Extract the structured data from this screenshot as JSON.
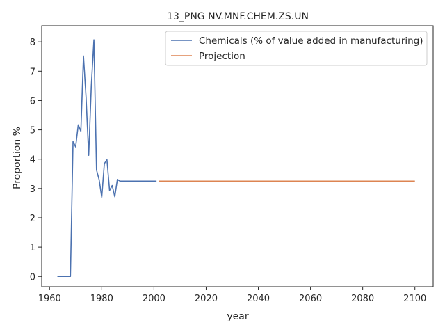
{
  "chart_data": {
    "type": "line",
    "title": "13_PNG NV.MNF.CHEM.ZS.UN",
    "xlabel": "year",
    "ylabel": "Proportion %",
    "xlim": [
      1957,
      2107
    ],
    "ylim": [
      -0.35,
      8.55
    ],
    "xticks": [
      1960,
      1980,
      2000,
      2020,
      2040,
      2060,
      2080,
      2100
    ],
    "yticks": [
      0,
      1,
      2,
      3,
      4,
      5,
      6,
      7,
      8
    ],
    "grid": false,
    "legend_position": "top-right",
    "series": [
      {
        "name": "Chemicals (% of value added in manufacturing)",
        "color": "#4c72b0",
        "x": [
          1963,
          1964,
          1965,
          1966,
          1967,
          1968,
          1969,
          1970,
          1971,
          1972,
          1973,
          1974,
          1975,
          1976,
          1977,
          1978,
          1979,
          1980,
          1981,
          1982,
          1983,
          1984,
          1985,
          1986,
          1987,
          1988,
          1989,
          1990,
          1991,
          1992,
          1993,
          1994,
          1995,
          1996,
          1997,
          1998,
          1999,
          2000,
          2001
        ],
        "y": [
          0,
          0,
          0,
          0,
          0,
          0,
          4.6,
          4.42,
          5.17,
          4.95,
          7.52,
          6.1,
          4.13,
          6.5,
          8.07,
          3.63,
          3.3,
          2.7,
          3.85,
          3.98,
          2.93,
          3.1,
          2.72,
          3.31,
          3.25,
          3.25,
          3.25,
          3.25,
          3.25,
          3.25,
          3.25,
          3.25,
          3.25,
          3.25,
          3.25,
          3.25,
          3.25,
          3.25,
          3.25
        ]
      },
      {
        "name": "Projection",
        "color": "#dd8452",
        "x": [
          2002,
          2100
        ],
        "y": [
          3.25,
          3.25
        ]
      }
    ]
  }
}
